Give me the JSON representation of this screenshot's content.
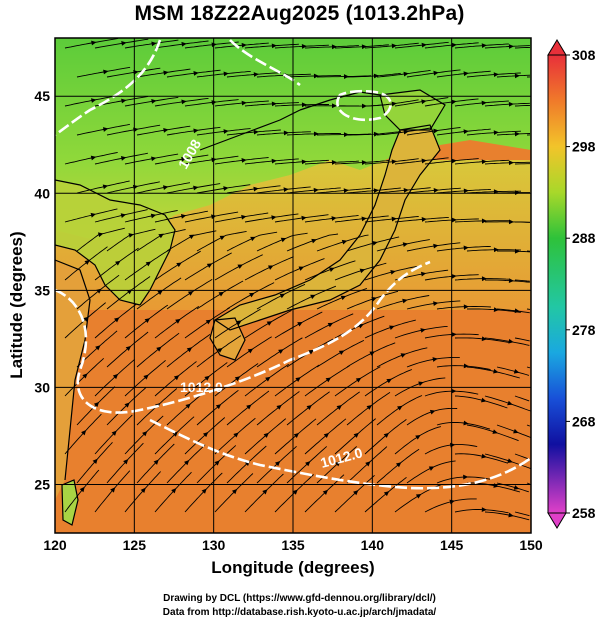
{
  "title": "MSM 18Z22Aug2025 (1013.2hPa)",
  "axes": {
    "xlabel": "Longitude (degrees)",
    "ylabel": "Latitude  (degrees)",
    "x_ticks": [
      "120",
      "125",
      "130",
      "135",
      "140",
      "145",
      "150"
    ],
    "y_ticks": [
      "25",
      "30",
      "35",
      "40",
      "45"
    ]
  },
  "colorbar": {
    "ticks": [
      "308",
      "298",
      "288",
      "278",
      "268",
      "258"
    ],
    "colors": [
      "#e8303a",
      "#f07a2a",
      "#f2c42a",
      "#a8d82a",
      "#2ec23a",
      "#22c7a4",
      "#1aa8e0",
      "#1850d8",
      "#1010a0",
      "#e040c8"
    ]
  },
  "map": {
    "ocean_color": "#e8802e",
    "land_color": "#e89a3a",
    "north_color": "#72d43a",
    "isobar_color": "#ffffff",
    "isobar_labels": [
      "1008",
      "1012.0",
      "1012.0"
    ]
  },
  "credits": {
    "line1": "Drawing by DCL (https://www.gfd-dennou.org/library/dcl/)",
    "line2": "Data from http://database.rish.kyoto-u.ac.jp/arch/jmadata/"
  }
}
